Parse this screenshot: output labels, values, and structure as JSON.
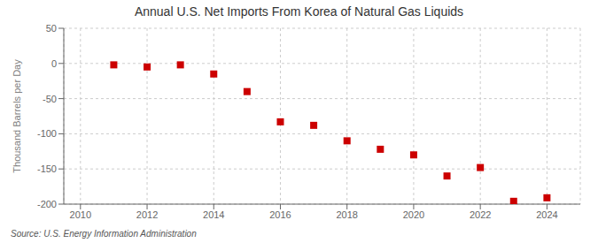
{
  "chart_data": {
    "type": "scatter",
    "title": "Annual U.S. Net Imports From Korea of Natural Gas Liquids",
    "y_label": "Thousand Barrels per Day",
    "annotations": [
      "Source: U.S. Energy Information Administration"
    ],
    "x": [
      2011,
      2012,
      2013,
      2014,
      2015,
      2016,
      2017,
      2018,
      2019,
      2020,
      2021,
      2022,
      2023,
      2024
    ],
    "values": [
      -2,
      -5,
      -2,
      -15,
      -40,
      -83,
      -88,
      -110,
      -122,
      -130,
      -160,
      -148,
      -196,
      -191
    ],
    "color": "#cc0000",
    "marker": "square",
    "xlim": [
      2009.5,
      2025
    ],
    "ylim": [
      -200,
      50
    ],
    "xticks": [
      2010,
      2012,
      2014,
      2016,
      2018,
      2020,
      2022,
      2024
    ],
    "yticks": [
      -200,
      -150,
      -100,
      -50,
      0,
      50
    ],
    "grid": true
  }
}
